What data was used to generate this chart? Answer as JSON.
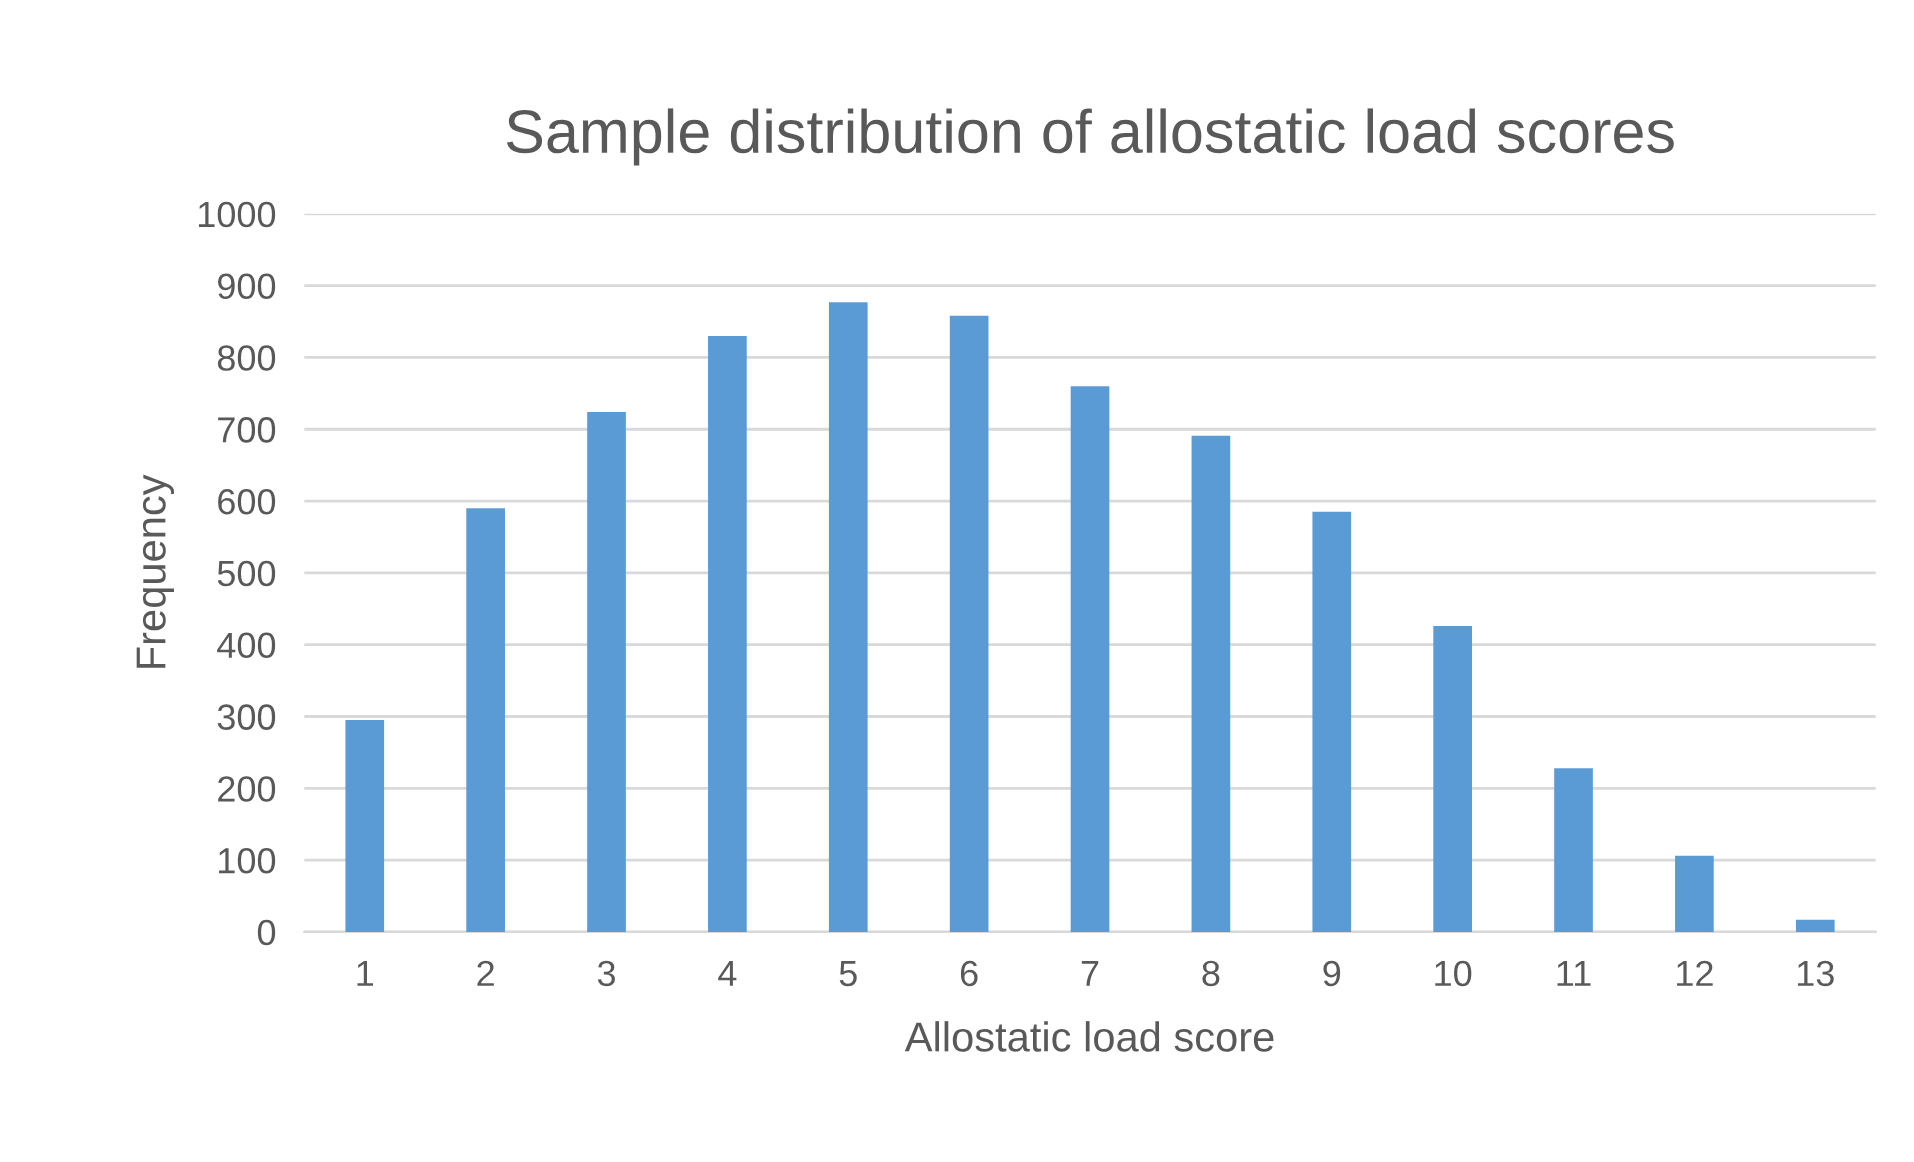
{
  "chart_data": {
    "type": "bar",
    "title": "Sample distribution of allostatic load scores",
    "xlabel": "Allostatic load score",
    "ylabel": "Frequency",
    "categories": [
      "1",
      "2",
      "3",
      "4",
      "5",
      "6",
      "7",
      "8",
      "9",
      "10",
      "11",
      "12",
      "13"
    ],
    "values": [
      295,
      590,
      724,
      830,
      877,
      858,
      760,
      691,
      585,
      426,
      228,
      106,
      17
    ],
    "color": "#5b9bd5",
    "ylim": [
      0,
      1000
    ],
    "yticks": [
      0,
      100,
      200,
      300,
      400,
      500,
      600,
      700,
      800,
      900,
      1000
    ],
    "grid": "y",
    "legend": false
  }
}
